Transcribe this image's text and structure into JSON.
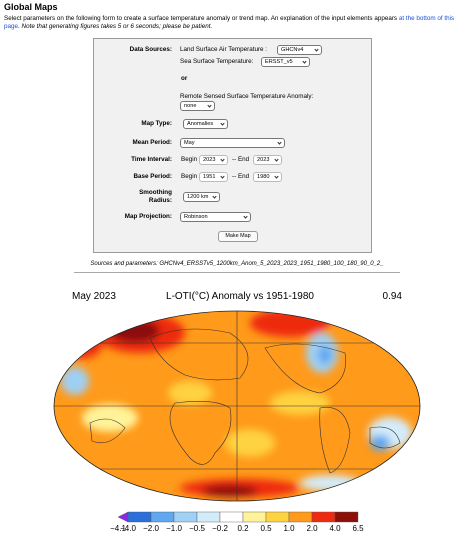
{
  "header": {
    "title": "Global Maps",
    "intro": "Select parameters on the following form to create a surface temperature anomaly or trend map. An explanation of the input elements appears",
    "intro_link": "at the bottom of this page",
    "intro_end": ".",
    "note": "Note that generating figures takes 5 or 6 seconds; please be patient."
  },
  "form": {
    "data_sources": {
      "label": "Data Sources:",
      "land_label": "Land Surface Air Temperature :",
      "land_value": "GHCNv4",
      "sea_label": "Sea Surface Temperature:",
      "sea_value": "ERSST_v5",
      "or": "or",
      "remote_label": "Remote Sensed Surface Temperature Anomaly:",
      "remote_value": "none"
    },
    "map_type": {
      "label": "Map Type:",
      "value": "Anomalies"
    },
    "mean_period": {
      "label": "Mean Period:",
      "value": "May"
    },
    "time_interval": {
      "label": "Time Interval:",
      "begin_label": "Begin",
      "begin": "2023",
      "end_label": "-- End",
      "end": "2023"
    },
    "base_period": {
      "label": "Base Period:",
      "begin_label": "Begin",
      "begin": "1951",
      "end_label": "-- End",
      "end": "1980"
    },
    "smoothing": {
      "label": "Smoothing Radius:",
      "value": "1200 km"
    },
    "projection": {
      "label": "Map Projection:",
      "value": "Robinson"
    },
    "button": "Make Map"
  },
  "sources": "Sources and parameters: GHCNv4_ERSSTv5_1200km_Anom_5_2023_2023_1951_1980_100_180_90_0_2_",
  "map": {
    "left_title": "May 2023",
    "center_title": "L-OTI(°C) Anomaly vs 1951-1980",
    "right_title": "0.94",
    "colorbar": {
      "labels": [
        "−4.1",
        "−4.0",
        "−2.0",
        "−1.0",
        "−0.5",
        "−0.2",
        "0.2",
        "0.5",
        "1.0",
        "2.0",
        "4.0",
        "6.5"
      ],
      "colors": [
        "#8a2be2",
        "#2a6fdc",
        "#5fa7ef",
        "#9fd0f5",
        "#d3ecfa",
        "#ffffff",
        "#fff39a",
        "#ffd23f",
        "#ff9a1a",
        "#ee2b10",
        "#8c0f08"
      ]
    }
  }
}
